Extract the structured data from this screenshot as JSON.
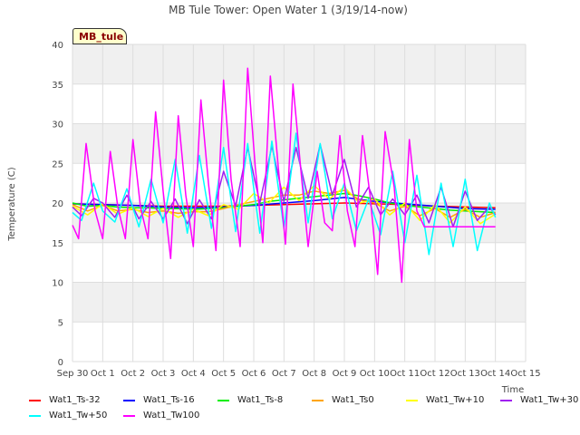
{
  "chart_data": {
    "type": "line",
    "title": "MB Tule Tower: Open Water 1 (3/19/14-now)",
    "xlabel": "Time",
    "ylabel": "Temperature (C)",
    "ylim": [
      0,
      40
    ],
    "xlim": [
      0,
      15
    ],
    "yticks": [
      0,
      5,
      10,
      15,
      20,
      25,
      30,
      35,
      40
    ],
    "xticks": [
      {
        "v": 0,
        "label": "Sep 30"
      },
      {
        "v": 1,
        "label": "Oct 1"
      },
      {
        "v": 2,
        "label": "Oct 2"
      },
      {
        "v": 3,
        "label": "Oct 3"
      },
      {
        "v": 4,
        "label": "Oct 4"
      },
      {
        "v": 5,
        "label": "Oct 5"
      },
      {
        "v": 6,
        "label": "Oct 6"
      },
      {
        "v": 7,
        "label": "Oct 7"
      },
      {
        "v": 8,
        "label": "Oct 8"
      },
      {
        "v": 9,
        "label": "Oct 9"
      },
      {
        "v": 10,
        "label": "Oct 10"
      },
      {
        "v": 11,
        "label": "Oct 11"
      },
      {
        "v": 12,
        "label": "Oct 12"
      },
      {
        "v": 13,
        "label": "Oct 13"
      },
      {
        "v": 14,
        "label": "Oct 14"
      },
      {
        "v": 15,
        "label": "Oct 15"
      }
    ],
    "tag_label": "MB_tule",
    "grid": true,
    "legend_position": "bottom",
    "series": [
      {
        "name": "Wat1_Ts-32",
        "color": "#ff0000",
        "x": [
          0,
          1,
          2,
          3,
          4,
          5,
          6,
          7,
          8,
          9,
          10,
          11,
          12,
          13,
          14
        ],
        "y": [
          19.9,
          19.8,
          19.7,
          19.6,
          19.6,
          19.6,
          19.7,
          19.8,
          19.9,
          20.0,
          19.9,
          19.8,
          19.6,
          19.5,
          19.4
        ]
      },
      {
        "name": "Wat1_Ts-16",
        "color": "#0000ff",
        "x": [
          0,
          1,
          2,
          3,
          4,
          5,
          6,
          7,
          8,
          9,
          10,
          11,
          12,
          13,
          14
        ],
        "y": [
          19.9,
          19.8,
          19.7,
          19.5,
          19.4,
          19.5,
          19.7,
          20.0,
          20.3,
          20.7,
          20.2,
          19.9,
          19.6,
          19.3,
          19.2
        ]
      },
      {
        "name": "Wat1_Ts-8",
        "color": "#00ee00",
        "x": [
          0,
          0.5,
          1,
          1.5,
          2,
          2.5,
          3,
          3.5,
          4,
          4.5,
          5,
          5.5,
          6,
          6.5,
          7,
          7.5,
          8,
          8.5,
          9,
          9.5,
          10,
          10.5,
          11,
          11.5,
          12,
          12.5,
          13,
          13.5,
          14
        ],
        "y": [
          20.0,
          19.6,
          19.7,
          19.5,
          19.4,
          19.4,
          19.3,
          19.3,
          19.2,
          19.3,
          19.4,
          19.6,
          19.8,
          20.2,
          20.4,
          20.6,
          20.8,
          21.0,
          21.2,
          20.9,
          20.5,
          20.0,
          19.7,
          19.5,
          19.3,
          19.1,
          19.0,
          18.9,
          18.8
        ]
      },
      {
        "name": "Wat1_Ts0",
        "color": "#ffa500",
        "x": [
          0,
          0.5,
          1,
          1.5,
          2,
          2.5,
          3,
          3.5,
          4,
          4.5,
          5,
          5.5,
          6,
          6.5,
          7,
          7.5,
          8,
          8.5,
          9,
          9.5,
          10,
          10.5,
          11,
          11.5,
          12,
          12.5,
          13,
          13.5,
          14
        ],
        "y": [
          19.8,
          19.0,
          19.7,
          19.0,
          19.2,
          18.8,
          19.0,
          18.7,
          18.9,
          18.9,
          19.3,
          19.8,
          20.2,
          20.6,
          21.0,
          21.0,
          21.5,
          21.2,
          21.6,
          20.4,
          20.0,
          19.0,
          19.6,
          18.4,
          19.3,
          18.2,
          19.2,
          18.2,
          18.8
        ]
      },
      {
        "name": "Wat1_Tw+10",
        "color": "#ffff00",
        "x": [
          0,
          0.5,
          1,
          1.5,
          2,
          2.5,
          3,
          3.5,
          4,
          4.5,
          5,
          5.5,
          6,
          6.5,
          7,
          7.5,
          8,
          8.5,
          9,
          9.5,
          10,
          10.5,
          11,
          11.5,
          12,
          12.5,
          13,
          13.5,
          14
        ],
        "y": [
          19.6,
          18.5,
          19.9,
          18.6,
          19.4,
          18.3,
          19.3,
          18.2,
          19.2,
          18.4,
          19.8,
          19.2,
          21.2,
          20.0,
          22.0,
          20.3,
          22.2,
          20.5,
          22.0,
          20.0,
          20.5,
          18.5,
          20.0,
          17.8,
          19.8,
          17.5,
          19.5,
          17.4,
          18.6
        ]
      },
      {
        "name": "Wat1_Tw+30",
        "color": "#a020f0",
        "x": [
          0,
          0.3,
          0.7,
          1,
          1.4,
          1.8,
          2.2,
          2.6,
          3,
          3.4,
          3.8,
          4.2,
          4.6,
          5,
          5.4,
          5.8,
          6.2,
          6.6,
          7,
          7.4,
          7.8,
          8.2,
          8.6,
          9,
          9.4,
          9.8,
          10.2,
          10.6,
          11,
          11.4,
          11.8,
          12.2,
          12.6,
          13,
          13.4,
          13.8,
          14
        ],
        "y": [
          19.5,
          18.4,
          20.6,
          20.0,
          18.2,
          21.0,
          18.0,
          20.2,
          18.0,
          20.5,
          17.4,
          20.4,
          18.0,
          24.0,
          19.6,
          27.0,
          20.0,
          27.2,
          20.2,
          27.0,
          20.6,
          27.4,
          21.0,
          25.5,
          19.5,
          22.0,
          18.5,
          20.5,
          18.5,
          21.0,
          17.5,
          22.0,
          17.0,
          21.5,
          17.8,
          19.5,
          18.5
        ]
      },
      {
        "name": "Wat1_Tw+50",
        "color": "#00ffff",
        "x": [
          0,
          0.3,
          0.7,
          1,
          1.4,
          1.8,
          2.2,
          2.6,
          3,
          3.4,
          3.8,
          4.2,
          4.6,
          5,
          5.4,
          5.8,
          6.2,
          6.6,
          7,
          7.4,
          7.8,
          8.2,
          8.6,
          9,
          9.4,
          9.8,
          10.2,
          10.6,
          11,
          11.4,
          11.8,
          12.2,
          12.6,
          13,
          13.4,
          13.8,
          14
        ],
        "y": [
          18.8,
          17.8,
          22.5,
          19.0,
          17.6,
          21.8,
          17.0,
          23.0,
          17.5,
          25.5,
          16.2,
          26.0,
          16.8,
          27.0,
          16.4,
          27.5,
          16.2,
          27.8,
          16.8,
          28.8,
          17.5,
          27.5,
          18.0,
          22.5,
          16.5,
          20.5,
          16.0,
          24.0,
          15.0,
          23.5,
          13.5,
          22.5,
          14.5,
          23.0,
          14.0,
          20.0,
          18.2
        ]
      },
      {
        "name": "Wat1_Tw100",
        "color": "#ff00ff",
        "x": [
          0,
          0.2,
          0.45,
          0.75,
          1.0,
          1.25,
          1.5,
          1.75,
          2.0,
          2.25,
          2.5,
          2.75,
          3.0,
          3.25,
          3.5,
          3.75,
          4.0,
          4.25,
          4.5,
          4.75,
          5.0,
          5.25,
          5.55,
          5.8,
          6.05,
          6.3,
          6.55,
          6.8,
          7.05,
          7.3,
          7.55,
          7.8,
          8.1,
          8.35,
          8.6,
          8.85,
          9.1,
          9.35,
          9.6,
          9.85,
          10.1,
          10.35,
          10.65,
          10.9,
          11.15,
          11.4,
          11.65,
          11.9,
          12.15,
          12.4,
          12.65,
          12.9,
          13.15,
          13.4,
          13.6,
          13.85,
          14.0
        ],
        "y": [
          17.2,
          15.5,
          27.5,
          19.0,
          15.5,
          26.5,
          19.5,
          15.5,
          28.0,
          19.5,
          15.5,
          31.5,
          21.5,
          13.0,
          31.0,
          21.0,
          14.5,
          33.0,
          22.5,
          14.0,
          35.5,
          23.0,
          14.5,
          37.0,
          24.5,
          15.0,
          36.0,
          25.0,
          14.8,
          35.0,
          24.5,
          14.5,
          24.0,
          17.5,
          16.5,
          28.5,
          19.0,
          14.5,
          28.5,
          21.0,
          11.0,
          29.0,
          22.0,
          10.0,
          28.0,
          19.0,
          17.0,
          17.0,
          17.0,
          17.0,
          17.0,
          17.0,
          17.0,
          17.0,
          17.0,
          17.0,
          17.0
        ]
      }
    ]
  }
}
